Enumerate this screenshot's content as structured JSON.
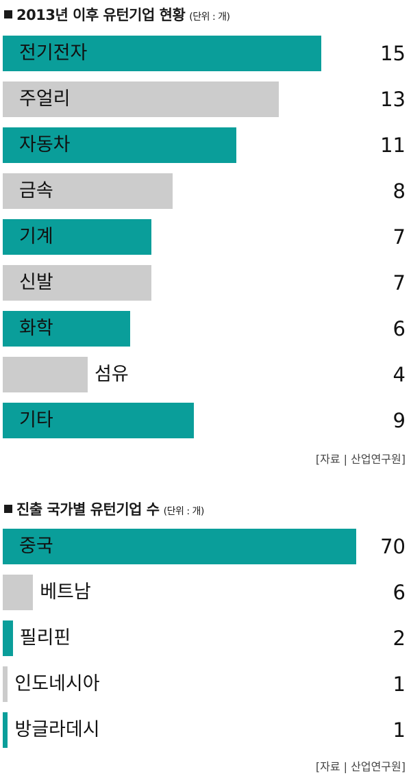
{
  "colors": {
    "teal": "#0a9e9a",
    "gray": "#cccccc"
  },
  "chart_data": [
    {
      "type": "bar",
      "orientation": "horizontal",
      "title": "2013년 이후 유턴기업 현황",
      "unit": "(단위 : 개)",
      "source": "[자료 | 산업연구원]",
      "categories": [
        "전기전자",
        "주얼리",
        "자동차",
        "금속",
        "기계",
        "신발",
        "화학",
        "섬유",
        "기타"
      ],
      "values": [
        15,
        13,
        11,
        8,
        7,
        7,
        6,
        4,
        9
      ],
      "bar_colors": [
        "teal",
        "gray",
        "teal",
        "gray",
        "teal",
        "gray",
        "teal",
        "gray",
        "teal"
      ],
      "xlim": [
        0,
        15
      ]
    },
    {
      "type": "bar",
      "orientation": "horizontal",
      "title": "진출 국가별 유턴기업 수",
      "unit": "(단위 : 개)",
      "source": "[자료 | 산업연구원]",
      "categories": [
        "중국",
        "베트남",
        "필리핀",
        "인도네시아",
        "방글라데시"
      ],
      "values": [
        70,
        6,
        2,
        1,
        1
      ],
      "bar_colors": [
        "teal",
        "gray",
        "teal",
        "gray",
        "teal"
      ],
      "xlim": [
        0,
        70
      ]
    }
  ]
}
